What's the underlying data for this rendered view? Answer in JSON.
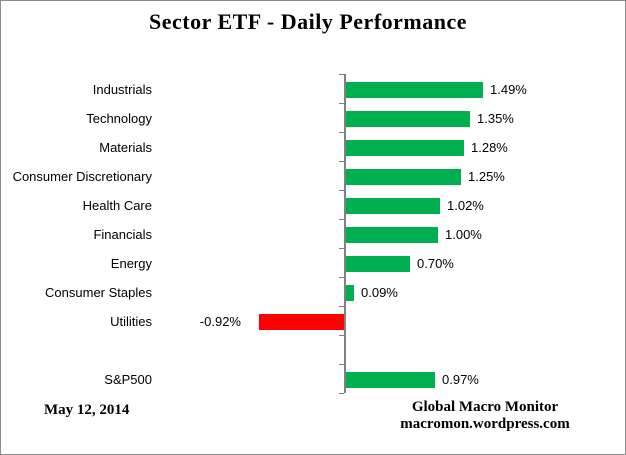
{
  "title": "Sector ETF - Daily Performance",
  "footer": {
    "date": "May 12, 2014",
    "source_line1": "Global Macro Monitor",
    "source_line2": "macromon.wordpress.com"
  },
  "colors": {
    "positive_bar": "#00B050",
    "negative_bar": "#FF0000",
    "axis": "#808080",
    "frame_border": "#8C8C8C",
    "text": "#000000"
  },
  "chart_data": {
    "type": "bar",
    "orientation": "horizontal",
    "title": "Sector ETF - Daily Performance",
    "unit": "%",
    "grid": false,
    "legend": false,
    "value_labels_position": "outside-end",
    "categories": [
      "Industrials",
      "Technology",
      "Materials",
      "Consumer Discretionary",
      "Health Care",
      "Financials",
      "Energy",
      "Consumer Staples",
      "Utilities",
      "S&P500"
    ],
    "values": [
      1.49,
      1.35,
      1.28,
      1.25,
      1.02,
      1.0,
      0.7,
      0.09,
      -0.92,
      0.97
    ],
    "rows": [
      {
        "category": "Industrials",
        "value": 1.49,
        "label": "1.49%"
      },
      {
        "category": "Technology",
        "value": 1.35,
        "label": "1.35%"
      },
      {
        "category": "Materials",
        "value": 1.28,
        "label": "1.28%"
      },
      {
        "category": "Consumer Discretionary",
        "value": 1.25,
        "label": "1.25%"
      },
      {
        "category": "Health Care",
        "value": 1.02,
        "label": "1.02%"
      },
      {
        "category": "Financials",
        "value": 1.0,
        "label": "1.00%"
      },
      {
        "category": "Energy",
        "value": 0.7,
        "label": "0.70%"
      },
      {
        "category": "Consumer Staples",
        "value": 0.09,
        "label": "0.09%"
      },
      {
        "category": "Utilities",
        "value": -0.92,
        "label": "-0.92%"
      },
      {
        "spacer": true
      },
      {
        "category": "S&P500",
        "value": 0.97,
        "label": "0.97%"
      }
    ]
  }
}
